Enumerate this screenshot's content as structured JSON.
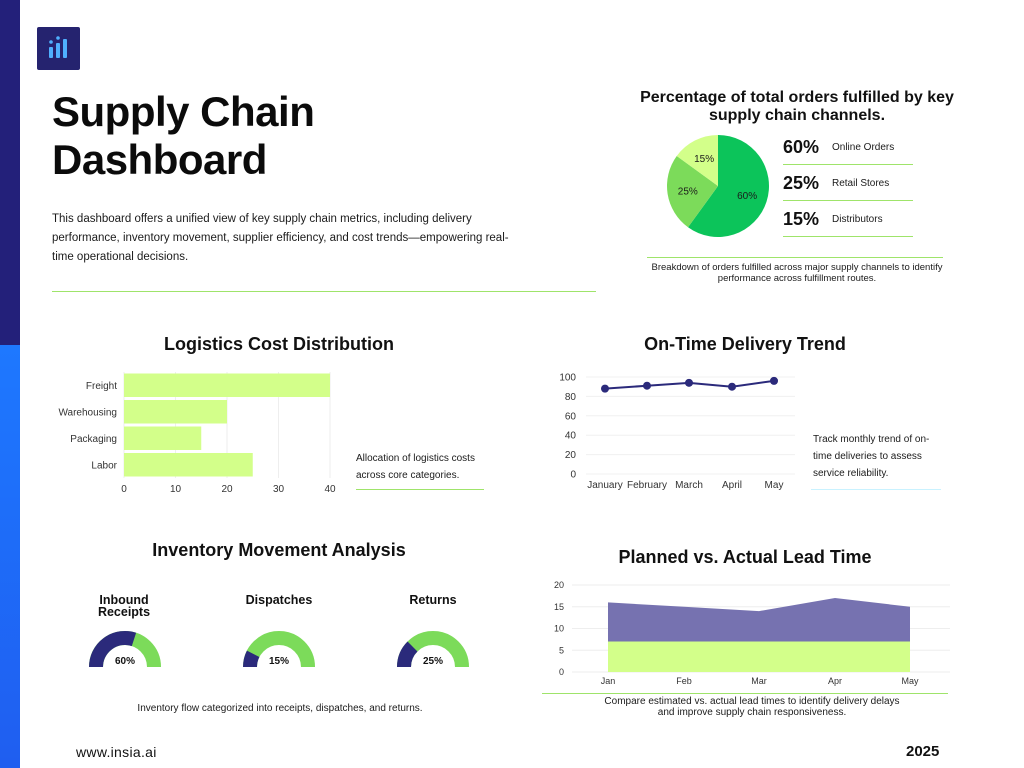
{
  "header": {
    "title_line1": "Supply Chain",
    "title_line2": "Dashboard",
    "description": "This dashboard offers a unified view of key supply chain metrics, including delivery performance, inventory movement, supplier efficiency, and cost trends—empowering real-time operational decisions."
  },
  "colors": {
    "sidebar_top": "#23207a",
    "sidebar_bottom": "#1e78ff",
    "green_dark": "#0cc45a",
    "green_mid": "#7cdb5a",
    "green_light": "#d3ff8a",
    "navy": "#2b2a7b",
    "purple_area": "#7672b0"
  },
  "icons": {
    "logo": "bar-chart-icon"
  },
  "footer": {
    "url": "www.insia.ai",
    "year": "2025"
  },
  "chart_data": [
    {
      "type": "pie",
      "title": "Percentage of total orders fulfilled by key supply chain channels.",
      "slices": [
        {
          "label": "Online Orders",
          "value": 60,
          "display": "60%",
          "color": "#0cc45a"
        },
        {
          "label": "Retail Stores",
          "value": 25,
          "display": "25%",
          "color": "#7cdb5a"
        },
        {
          "label": "Distributors",
          "value": 15,
          "display": "15%",
          "color": "#d3ff8a"
        }
      ],
      "caption": "Breakdown of orders fulfilled across major supply channels to identify performance across fulfillment routes."
    },
    {
      "type": "bar",
      "orientation": "horizontal",
      "title": "Logistics Cost Distribution",
      "categories": [
        "Freight",
        "Warehousing",
        "Packaging",
        "Labor"
      ],
      "values": [
        40,
        20,
        15,
        25
      ],
      "xlim": [
        0,
        40
      ],
      "xticks": [
        "0",
        "10",
        "20",
        "30",
        "40"
      ],
      "color": "#d3ff8a",
      "caption": "Allocation of logistics costs across core categories."
    },
    {
      "type": "line",
      "title": "On-Time Delivery Trend",
      "categories": [
        "January",
        "February",
        "March",
        "April",
        "May"
      ],
      "values": [
        88,
        91,
        94,
        90,
        96
      ],
      "ylim": [
        0,
        100
      ],
      "yticks": [
        "0",
        "20",
        "40",
        "60",
        "80",
        "100"
      ],
      "color": "#2b2a7b",
      "caption": "Track monthly trend of on-time deliveries to assess service reliability."
    },
    {
      "type": "gauge",
      "title": "Inventory Movement Analysis",
      "items": [
        {
          "label_line1": "Inbound",
          "label_line2": "Receipts",
          "value": 60,
          "display": "60%"
        },
        {
          "label_line1": "Dispatches",
          "label_line2": "",
          "value": 15,
          "display": "15%"
        },
        {
          "label_line1": "Returns",
          "label_line2": "",
          "value": 25,
          "display": "25%"
        }
      ],
      "caption": "Inventory flow categorized into receipts, dispatches, and returns."
    },
    {
      "type": "area",
      "title": "Planned vs. Actual Lead Time",
      "categories": [
        "Jan",
        "Feb",
        "Mar",
        "Apr",
        "May"
      ],
      "series": [
        {
          "values": [
            7,
            7,
            7,
            7,
            7
          ],
          "color": "#d3ff8a"
        },
        {
          "values": [
            16,
            15,
            14,
            17,
            15
          ],
          "color": "#7672b0"
        }
      ],
      "ylim": [
        0,
        20
      ],
      "yticks": [
        "0",
        "5",
        "10",
        "15",
        "20"
      ],
      "caption_line1": "Compare estimated vs. actual lead times to identify delivery delays",
      "caption_line2": "and improve supply chain responsiveness."
    }
  ]
}
